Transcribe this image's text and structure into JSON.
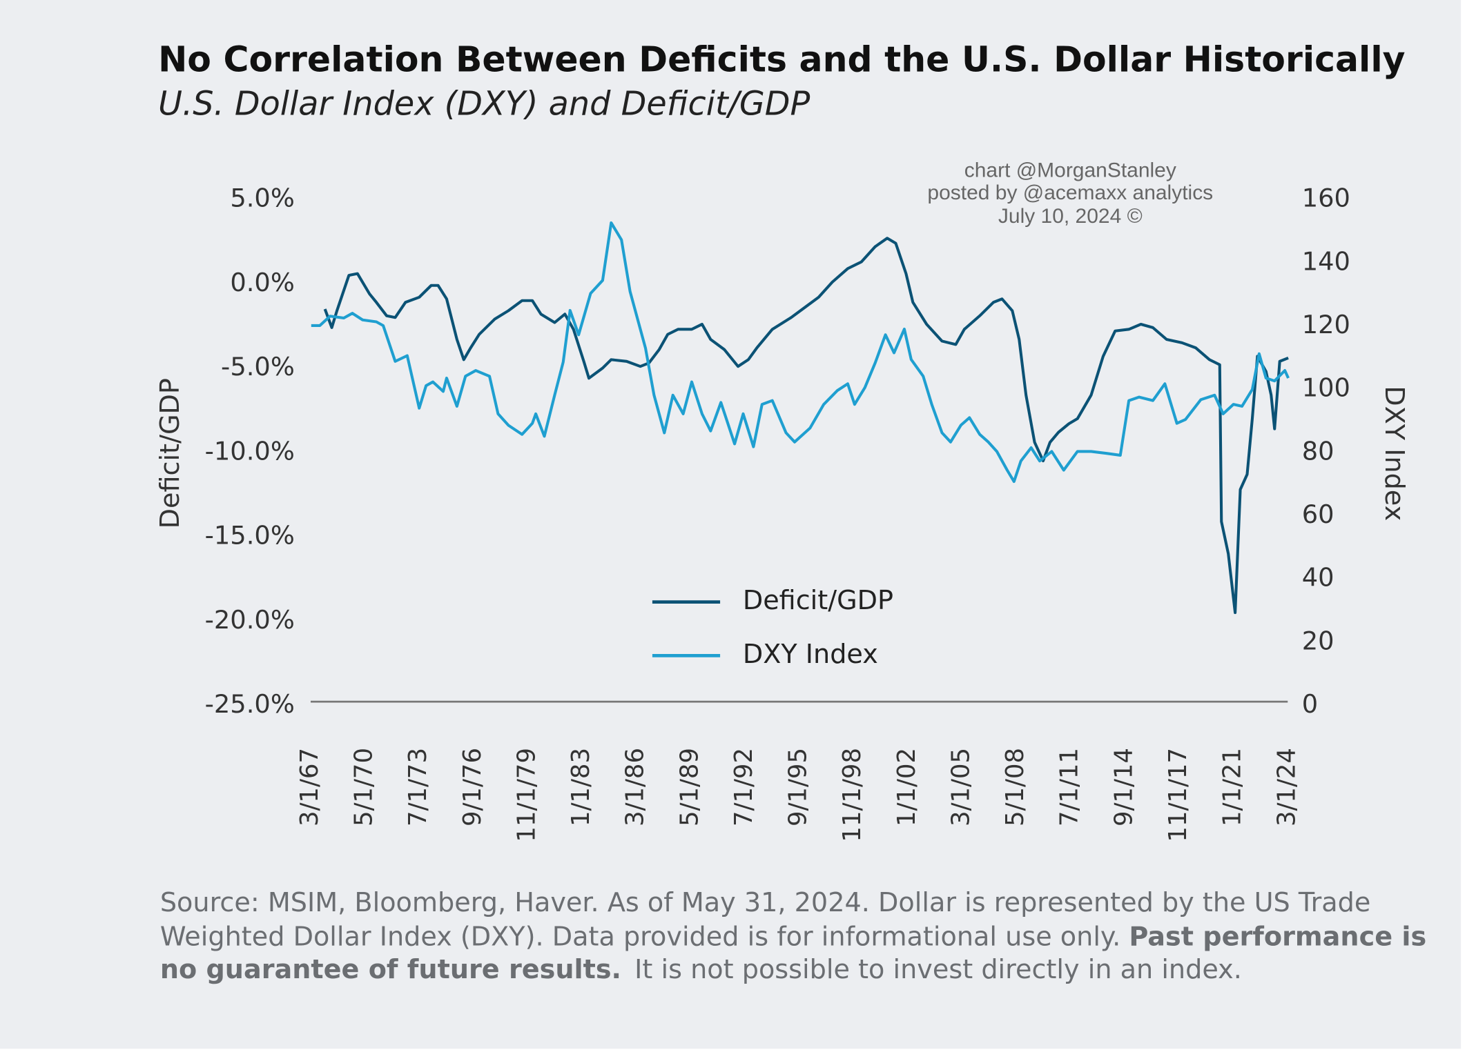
{
  "chart_data": {
    "type": "line",
    "title": "No Correlation Between Deficits and the U.S. Dollar Historically",
    "subtitle": "U.S. Dollar Index (DXY) and Deficit/GDP",
    "watermark": [
      "chart @MorganStanley",
      "posted by @acemaxx analytics",
      "July 10, 2024 ©"
    ],
    "ylabel": "Deficit/GDP",
    "y2label": "DXY Index",
    "footnote": [
      "Source: MSIM, Bloomberg, Haver. As of May 31, 2024. Dollar is represented by the US Trade",
      "Weighted Dollar Index (DXY). Data provided is for informational use only.",
      "Past performance is",
      "no guarantee of future results.",
      "It is not possible to invest directly in an index."
    ],
    "xlim": [
      1967.167,
      2024.167
    ],
    "xticks": [
      {
        "value": 1967.167,
        "label": "3/1/67"
      },
      {
        "value": 1970.333,
        "label": "5/1/70"
      },
      {
        "value": 1973.5,
        "label": "7/1/73"
      },
      {
        "value": 1976.667,
        "label": "9/1/76"
      },
      {
        "value": 1979.833,
        "label": "11/1/79"
      },
      {
        "value": 1983.0,
        "label": "1/1/83"
      },
      {
        "value": 1986.167,
        "label": "3/1/86"
      },
      {
        "value": 1989.333,
        "label": "5/1/89"
      },
      {
        "value": 1992.5,
        "label": "7/1/92"
      },
      {
        "value": 1995.667,
        "label": "9/1/95"
      },
      {
        "value": 1998.833,
        "label": "11/1/98"
      },
      {
        "value": 2002.0,
        "label": "1/1/02"
      },
      {
        "value": 2005.167,
        "label": "3/1/05"
      },
      {
        "value": 2008.333,
        "label": "5/1/08"
      },
      {
        "value": 2011.5,
        "label": "7/1/11"
      },
      {
        "value": 2014.667,
        "label": "9/1/14"
      },
      {
        "value": 2017.833,
        "label": "11/1/17"
      },
      {
        "value": 2021.0,
        "label": "1/1/21"
      },
      {
        "value": 2024.167,
        "label": "3/1/24"
      }
    ],
    "ylim": [
      -25,
      5
    ],
    "yticks": [
      {
        "value": -25,
        "label": "-25.0%"
      },
      {
        "value": -20,
        "label": "-20.0%"
      },
      {
        "value": -15,
        "label": "-15.0%"
      },
      {
        "value": -10,
        "label": "-10.0%"
      },
      {
        "value": -5,
        "label": "-5.0%"
      },
      {
        "value": 0,
        "label": "0.0%"
      },
      {
        "value": 5,
        "label": "5.0%"
      }
    ],
    "y2lim": [
      0,
      160
    ],
    "y2ticks": [
      0,
      20,
      40,
      60,
      80,
      100,
      120,
      140,
      160
    ],
    "grid": false,
    "series": [
      {
        "name": "Deficit/GDP",
        "color": "#0b5275",
        "axis": "y",
        "x": [
          1968.0,
          1968.4,
          1968.7,
          1969.4,
          1969.9,
          1970.6,
          1971.0,
          1971.6,
          1972.1,
          1972.7,
          1973.5,
          1974.2,
          1974.6,
          1975.1,
          1975.7,
          1976.1,
          1976.5,
          1977.0,
          1977.9,
          1978.7,
          1979.5,
          1980.1,
          1980.6,
          1981.4,
          1982.0,
          1982.5,
          1983.1,
          1983.4,
          1984.2,
          1984.7,
          1985.6,
          1986.4,
          1986.9,
          1987.5,
          1988.0,
          1988.6,
          1989.4,
          1990.0,
          1990.5,
          1991.3,
          1992.1,
          1992.7,
          1993.2,
          1994.1,
          1995.2,
          1996.0,
          1996.8,
          1997.6,
          1998.5,
          1999.3,
          2000.1,
          2000.8,
          2001.3,
          2001.9,
          2002.3,
          2003.1,
          2004.0,
          2004.8,
          2005.3,
          2006.2,
          2007.0,
          2007.5,
          2008.1,
          2008.5,
          2008.9,
          2009.4,
          2009.9,
          2010.3,
          2010.8,
          2011.4,
          2011.9,
          2012.7,
          2013.4,
          2014.1,
          2014.9,
          2015.6,
          2016.3,
          2017.1,
          2018.0,
          2018.8,
          2019.6,
          2020.2,
          2020.3,
          2020.7,
          2021.1,
          2021.4,
          2021.8,
          2022.1,
          2022.4,
          2022.9,
          2023.2,
          2023.4,
          2023.7,
          2024.2
        ],
        "values": [
          -1.5,
          -2.6,
          -1.6,
          0.5,
          0.6,
          -0.6,
          -1.1,
          -1.9,
          -2.0,
          -1.1,
          -0.8,
          -0.1,
          -0.1,
          -0.9,
          -3.3,
          -4.5,
          -3.8,
          -3.0,
          -2.1,
          -1.6,
          -1.0,
          -1.0,
          -1.8,
          -2.3,
          -1.8,
          -2.7,
          -4.6,
          -5.6,
          -5.0,
          -4.5,
          -4.6,
          -4.9,
          -4.7,
          -3.9,
          -3.0,
          -2.7,
          -2.7,
          -2.4,
          -3.3,
          -3.9,
          -4.9,
          -4.5,
          -3.8,
          -2.7,
          -2.0,
          -1.4,
          -0.8,
          0.1,
          0.9,
          1.3,
          2.2,
          2.7,
          2.4,
          0.6,
          -1.1,
          -2.4,
          -3.4,
          -3.6,
          -2.7,
          -1.9,
          -1.1,
          -0.9,
          -1.6,
          -3.3,
          -6.6,
          -9.4,
          -10.5,
          -9.4,
          -8.8,
          -8.3,
          -8.0,
          -6.6,
          -4.3,
          -2.8,
          -2.7,
          -2.4,
          -2.6,
          -3.3,
          -3.5,
          -3.8,
          -4.5,
          -4.8,
          -14.1,
          -16.0,
          -19.5,
          -12.2,
          -11.3,
          -8.0,
          -4.3,
          -5.2,
          -6.6,
          -8.6,
          -4.6,
          -4.4
        ]
      },
      {
        "name": "DXY Index",
        "color": "#1f9fd0",
        "axis": "y2",
        "x": [
          1967.2,
          1967.7,
          1968.3,
          1969.1,
          1969.6,
          1970.2,
          1971.0,
          1971.4,
          1972.1,
          1972.8,
          1973.5,
          1973.9,
          1974.3,
          1974.9,
          1975.1,
          1975.7,
          1976.2,
          1976.8,
          1977.6,
          1978.1,
          1978.7,
          1979.5,
          1980.1,
          1980.3,
          1980.8,
          1981.4,
          1981.9,
          1982.3,
          1982.8,
          1983.5,
          1984.2,
          1984.7,
          1985.3,
          1985.8,
          1986.7,
          1987.2,
          1987.8,
          1988.3,
          1988.9,
          1989.4,
          1990.0,
          1990.5,
          1991.1,
          1991.9,
          1992.4,
          1993.0,
          1993.5,
          1994.1,
          1994.9,
          1995.4,
          1996.3,
          1997.1,
          1997.9,
          1998.5,
          1998.9,
          1999.5,
          2000.1,
          2000.7,
          2001.2,
          2001.8,
          2002.2,
          2002.9,
          2003.4,
          2004.0,
          2004.5,
          2005.1,
          2005.6,
          2006.2,
          2006.7,
          2007.2,
          2007.8,
          2008.2,
          2008.6,
          2009.2,
          2009.7,
          2010.4,
          2011.1,
          2011.9,
          2012.7,
          2013.6,
          2014.4,
          2014.9,
          2015.5,
          2016.3,
          2017.0,
          2017.7,
          2018.2,
          2019.1,
          2019.9,
          2020.4,
          2021.0,
          2021.5,
          2022.1,
          2022.5,
          2022.9,
          2023.4,
          2024.0,
          2024.2
        ],
        "values": [
          120.1,
          120.1,
          123.1,
          122.5,
          124.0,
          121.9,
          121.3,
          120.1,
          108.8,
          110.6,
          94.0,
          101.1,
          102.3,
          99.3,
          103.5,
          94.6,
          104.1,
          105.9,
          104.1,
          92.2,
          88.6,
          85.7,
          89.2,
          92.2,
          85.1,
          98.1,
          108.6,
          124.9,
          117.2,
          130.3,
          134.4,
          152.6,
          147.2,
          130.9,
          113.0,
          98.1,
          86.2,
          98.1,
          92.2,
          102.3,
          92.2,
          86.8,
          95.8,
          82.7,
          92.2,
          81.8,
          95.2,
          96.4,
          86.2,
          83.3,
          87.7,
          95.2,
          99.6,
          101.7,
          95.2,
          100.5,
          108.3,
          117.2,
          111.5,
          119.0,
          109.4,
          104.1,
          95.2,
          86.2,
          83.3,
          88.6,
          91.0,
          85.7,
          83.3,
          80.3,
          74.4,
          70.8,
          77.3,
          81.5,
          77.3,
          80.3,
          74.4,
          80.3,
          80.3,
          79.7,
          79.1,
          96.4,
          97.5,
          96.4,
          101.7,
          89.2,
          90.4,
          96.7,
          98.1,
          92.2,
          95.2,
          94.6,
          99.9,
          111.2,
          103.5,
          102.6,
          105.9,
          103.5
        ]
      }
    ]
  }
}
